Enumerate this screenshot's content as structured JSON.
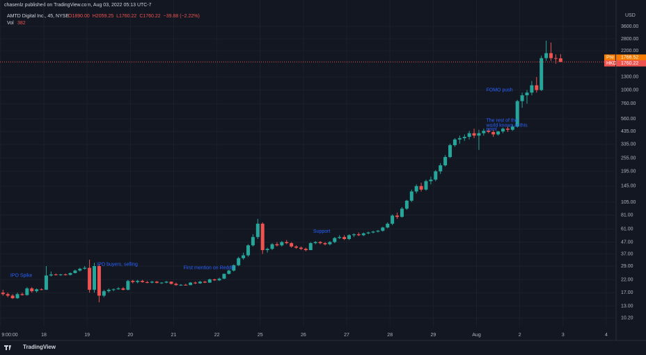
{
  "chart_data": {
    "type": "candlestick",
    "log_scale": true,
    "grid": true,
    "header": "chasenlz published on TradingView.com, Aug 03, 2022 05:13 UTC-7",
    "symbol": "AMTD Digital Inc., 45, NYSE",
    "legend_ohlc": [
      "O1890.00",
      "H2059.25",
      "L1760.22",
      "C1760.22",
      "−39.88 (−2.22%)"
    ],
    "volume_label": "Vol",
    "volume_value": "382",
    "currency": "USD",
    "up_color": "#26a69a",
    "down_color": "#ef5350",
    "ylim": [
      8.6,
      4960
    ],
    "yticks": [
      {
        "value": 3600,
        "label": "3600.00"
      },
      {
        "value": 2800,
        "label": "2800.00"
      },
      {
        "value": 2200,
        "label": "2200.00"
      },
      {
        "value": 1300,
        "label": "1300.00"
      },
      {
        "value": 1000,
        "label": "1000.00"
      },
      {
        "value": 760,
        "label": "760.00"
      },
      {
        "value": 560,
        "label": "560.00"
      },
      {
        "value": 435,
        "label": "435.00"
      },
      {
        "value": 335,
        "label": "335.00"
      },
      {
        "value": 255,
        "label": "255.00"
      },
      {
        "value": 195,
        "label": "195.00"
      },
      {
        "value": 145,
        "label": "145.00"
      },
      {
        "value": 105,
        "label": "105.00"
      },
      {
        "value": 81,
        "label": "81.00"
      },
      {
        "value": 61,
        "label": "61.00"
      },
      {
        "value": 47,
        "label": "47.00"
      },
      {
        "value": 37,
        "label": "37.00"
      },
      {
        "value": 29,
        "label": "29.00"
      },
      {
        "value": 22,
        "label": "22.00"
      },
      {
        "value": 17,
        "label": "17.00"
      },
      {
        "value": 13,
        "label": "13.00"
      },
      {
        "value": 10.2,
        "label": "10.20"
      }
    ],
    "price_lines": [
      {
        "name": "Pre",
        "value": 1766.52,
        "label": "1766.52",
        "color": "#f57c00"
      },
      {
        "name": "HKD",
        "value": 1760.22,
        "label": "1760.22",
        "color": "#ef5350"
      }
    ],
    "days": [
      {
        "label": "9:00:00",
        "candles": [
          [
            17,
            18,
            16,
            16.5
          ],
          [
            16.5,
            17,
            15.5,
            16
          ],
          [
            16,
            16.5,
            15,
            15.2
          ],
          [
            15.2,
            17,
            15,
            16.5
          ],
          [
            16.5,
            17,
            16,
            16.2
          ],
          [
            16.2,
            19,
            16,
            18.5
          ],
          [
            18.5,
            19,
            17,
            17.5
          ],
          [
            17.5,
            18.5,
            17,
            18.2
          ],
          [
            18.2,
            18.5,
            17.8,
            18
          ]
        ]
      },
      {
        "label": "18",
        "candles": [
          [
            18,
            29,
            18,
            24
          ],
          [
            24,
            26,
            23.5,
            24.5
          ],
          [
            24.5,
            25,
            24,
            24.2
          ],
          [
            24.2,
            24.8,
            23.8,
            24.5
          ],
          [
            24.5,
            25,
            24,
            24.3
          ],
          [
            24.3,
            25.5,
            24,
            25.2
          ],
          [
            25.2,
            27,
            25,
            26.5
          ],
          [
            26.5,
            28,
            26,
            27.5
          ],
          [
            27.5,
            29,
            27,
            28
          ]
        ]
      },
      {
        "label": "19",
        "candles": [
          [
            28,
            33,
            17,
            18
          ],
          [
            18,
            31,
            17,
            29
          ],
          [
            29,
            30,
            14,
            16
          ],
          [
            16,
            18,
            15.5,
            17.5
          ],
          [
            17.5,
            18.5,
            17,
            18
          ],
          [
            18,
            18.5,
            17.5,
            18.2
          ],
          [
            18.2,
            19,
            18,
            18.5
          ],
          [
            18.5,
            19,
            17.8,
            18
          ],
          [
            18,
            22,
            17.8,
            21.5
          ]
        ]
      },
      {
        "label": "20",
        "candles": [
          [
            21.5,
            22,
            20.5,
            21
          ],
          [
            21,
            22,
            20.5,
            21.5
          ],
          [
            21.5,
            22,
            20.8,
            21
          ],
          [
            21,
            21.5,
            20.5,
            20.8
          ],
          [
            20.8,
            21.5,
            20.5,
            21.2
          ],
          [
            21.2,
            21.5,
            20.5,
            20.7
          ],
          [
            20.7,
            21,
            20.3,
            20.8
          ],
          [
            20.8,
            21.5,
            20.5,
            21.2
          ],
          [
            21.2,
            21.3,
            20,
            20.3
          ]
        ]
      },
      {
        "label": "21",
        "candles": [
          [
            20.3,
            20.8,
            19.5,
            19.8
          ],
          [
            19.8,
            20.2,
            19.5,
            19.9
          ],
          [
            19.9,
            20.3,
            19.6,
            19.8
          ],
          [
            19.8,
            21,
            19.7,
            20.8
          ],
          [
            20.8,
            21.2,
            20.2,
            20.5
          ],
          [
            20.5,
            21.5,
            20.3,
            21.2
          ],
          [
            21.2,
            21.5,
            20.6,
            20.8
          ],
          [
            20.8,
            22.5,
            20.7,
            22.2
          ],
          [
            22.2,
            22.5,
            21.5,
            21.8
          ]
        ]
      },
      {
        "label": "22",
        "candles": [
          [
            21.8,
            23,
            21.5,
            22.5
          ],
          [
            22.5,
            25,
            22.3,
            24.8
          ],
          [
            24.8,
            27,
            24.5,
            26.5
          ],
          [
            26.5,
            30,
            26,
            29.5
          ],
          [
            29.5,
            35,
            29,
            34
          ],
          [
            34,
            38,
            33,
            36
          ],
          [
            36,
            45,
            35,
            44
          ],
          [
            44,
            55,
            43,
            52
          ],
          [
            52,
            75,
            50,
            68
          ]
        ]
      },
      {
        "label": "25",
        "candles": [
          [
            68,
            70,
            37,
            40
          ],
          [
            40,
            42,
            38,
            41
          ],
          [
            41,
            46,
            40,
            45
          ],
          [
            45,
            47,
            43,
            44
          ],
          [
            44,
            48,
            43,
            47
          ],
          [
            47,
            49,
            45,
            46
          ],
          [
            46,
            47,
            42,
            43
          ],
          [
            43,
            44,
            41,
            42
          ],
          [
            42,
            43,
            40,
            41
          ]
        ]
      },
      {
        "label": "26",
        "candles": [
          [
            41,
            42,
            39,
            40
          ],
          [
            40,
            47,
            40,
            46
          ],
          [
            46,
            48,
            45,
            47
          ],
          [
            47,
            48,
            45,
            46
          ],
          [
            46,
            47,
            44,
            45
          ],
          [
            45,
            48,
            44,
            47
          ],
          [
            47,
            52,
            46,
            51
          ],
          [
            51,
            54,
            50,
            52
          ],
          [
            52,
            54,
            49,
            50
          ]
        ]
      },
      {
        "label": "27",
        "candles": [
          [
            50,
            55,
            49,
            54
          ],
          [
            54,
            56,
            52,
            55
          ],
          [
            55,
            57,
            53,
            54
          ],
          [
            54,
            57,
            53,
            56
          ],
          [
            56,
            58,
            55,
            57
          ],
          [
            57,
            59,
            56,
            58
          ],
          [
            58,
            60,
            57,
            59
          ],
          [
            59,
            64,
            58,
            63
          ],
          [
            63,
            70,
            62,
            68
          ]
        ]
      },
      {
        "label": "28",
        "candles": [
          [
            68,
            82,
            66,
            80
          ],
          [
            80,
            85,
            75,
            78
          ],
          [
            78,
            95,
            77,
            92
          ],
          [
            92,
            110,
            90,
            108
          ],
          [
            108,
            135,
            105,
            130
          ],
          [
            130,
            150,
            125,
            145
          ],
          [
            145,
            155,
            130,
            135
          ],
          [
            135,
            165,
            132,
            160
          ],
          [
            160,
            175,
            150,
            165
          ]
        ]
      },
      {
        "label": "29",
        "candles": [
          [
            165,
            200,
            160,
            195
          ],
          [
            195,
            230,
            185,
            220
          ],
          [
            220,
            270,
            215,
            260
          ],
          [
            260,
            340,
            255,
            330
          ],
          [
            330,
            380,
            320,
            370
          ],
          [
            370,
            400,
            340,
            380
          ],
          [
            380,
            410,
            360,
            390
          ],
          [
            390,
            440,
            370,
            420
          ],
          [
            420,
            460,
            380,
            400
          ]
        ]
      },
      {
        "label": "Aug",
        "candles": [
          [
            400,
            450,
            300,
            420
          ],
          [
            420,
            460,
            400,
            440
          ],
          [
            440,
            460,
            420,
            430
          ],
          [
            430,
            450,
            390,
            410
          ],
          [
            410,
            440,
            400,
            435
          ],
          [
            435,
            470,
            420,
            460
          ],
          [
            460,
            480,
            430,
            450
          ],
          [
            450,
            500,
            440,
            480
          ],
          [
            480,
            820,
            470,
            800
          ]
        ]
      },
      {
        "label": "2",
        "candles": [
          [
            800,
            950,
            700,
            900
          ],
          [
            900,
            1000,
            760,
            950
          ],
          [
            950,
            1200,
            900,
            1100
          ],
          [
            1100,
            1300,
            950,
            1000
          ],
          [
            1000,
            2000,
            980,
            1900
          ],
          [
            1900,
            2700,
            1800,
            2100
          ],
          [
            2100,
            2600,
            1800,
            1900
          ],
          [
            1900,
            2050,
            1700,
            1890
          ],
          [
            1890,
            2059.25,
            1760.22,
            1760.22
          ]
        ]
      },
      {
        "label": "3",
        "candles": []
      },
      {
        "label": "4",
        "candles": []
      }
    ],
    "annotations": [
      {
        "text": "IPO Spike",
        "day": 0,
        "price": 24
      },
      {
        "text": "IPO buyers, selling",
        "day": 2,
        "price": 30
      },
      {
        "text": "First mention on Reddit",
        "day": 4,
        "price": 28
      },
      {
        "text": "Support",
        "day": 7,
        "price": 58
      },
      {
        "text": "The rest of the",
        "day": 11,
        "price": 540
      },
      {
        "text": "world knows at this",
        "day": 11,
        "price": 490
      },
      {
        "text": "point",
        "day": 11,
        "price": 455
      },
      {
        "text": "FOMO push",
        "day": 11,
        "price": 1000
      }
    ],
    "footer": "TradingView"
  }
}
